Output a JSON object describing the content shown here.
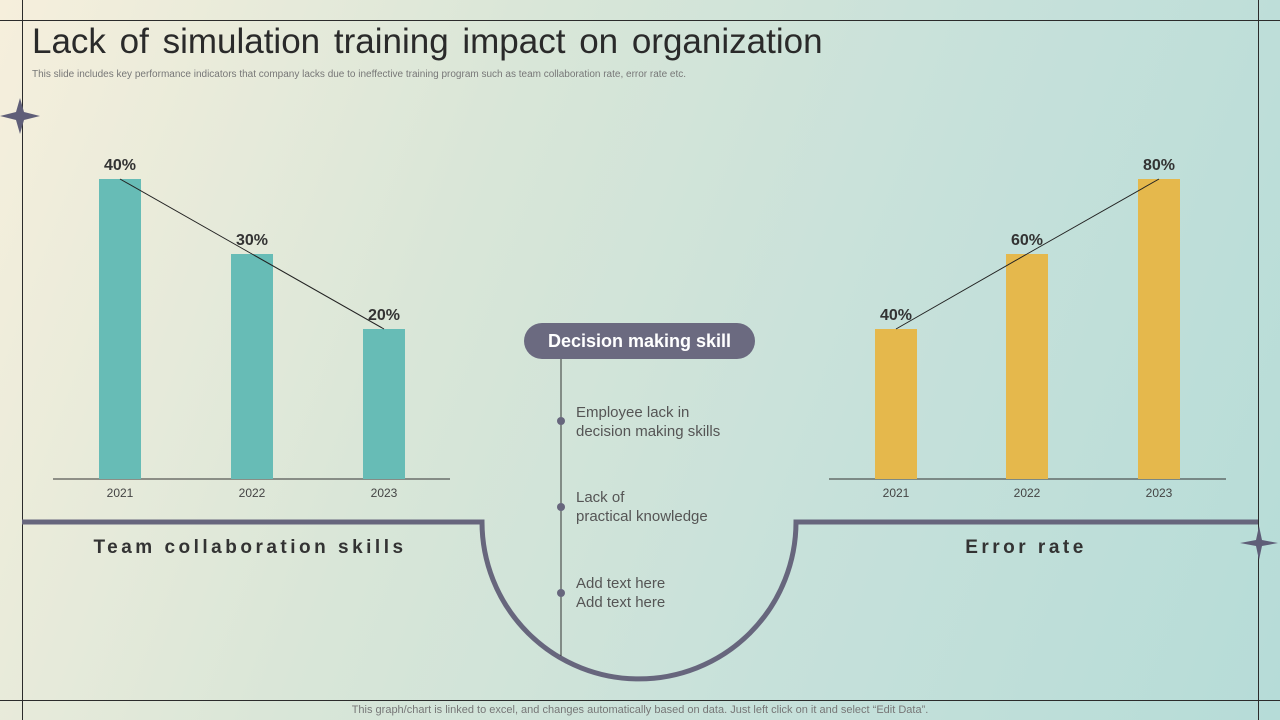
{
  "slide": {
    "title": "Lack of simulation training impact on organization",
    "subtitle": "This slide includes key performance indicators that company lacks due to ineffective training program such as team collaboration rate, error rate etc.",
    "footnote": "This graph/chart is linked to excel, and changes automatically based on data. Just left click on it and select “Edit Data”."
  },
  "colors": {
    "teal_bar": "#67bcb6",
    "yellow_bar": "#e5b84c",
    "arc": "#67667d",
    "pill": "#6b6a80"
  },
  "center": {
    "pill_label": "Decision making skill",
    "items": [
      {
        "line1": "Employee lack in",
        "line2": "decision making skills"
      },
      {
        "line1": "Lack of",
        "line2": "practical knowledge"
      },
      {
        "line1": "Add text here",
        "line2": "Add text here"
      }
    ]
  },
  "chart_data": [
    {
      "type": "bar",
      "title": "Team collaboration skills",
      "categories": [
        "2021",
        "2022",
        "2023"
      ],
      "values": [
        40,
        30,
        20
      ],
      "value_labels": [
        "40%",
        "30%",
        "20%"
      ],
      "unit": "%",
      "ylim": [
        0,
        40
      ],
      "trendline": true,
      "grid": false
    },
    {
      "type": "bar",
      "title": "Error rate",
      "categories": [
        "2021",
        "2022",
        "2023"
      ],
      "values": [
        40,
        60,
        80
      ],
      "value_labels": [
        "40%",
        "60%",
        "80%"
      ],
      "unit": "%",
      "ylim": [
        0,
        80
      ],
      "trendline": true,
      "grid": false
    }
  ]
}
